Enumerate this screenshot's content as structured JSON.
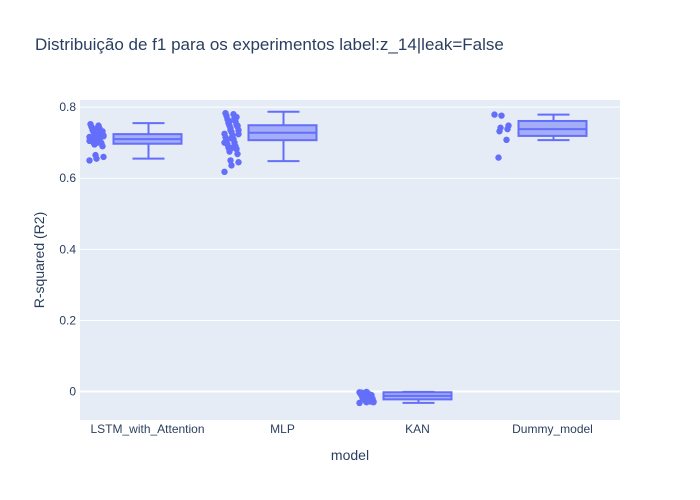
{
  "chart_data": {
    "type": "box",
    "title": "Distribuição de f1 para os experimentos   label:z_14|leak=False",
    "xlabel": "model",
    "ylabel": "R-squared (R2)",
    "categories": [
      "LSTM_with_Attention",
      "MLP",
      "KAN",
      "Dummy_model"
    ],
    "ylim": [
      -0.08,
      0.82
    ],
    "yticks": [
      0,
      0.2,
      0.4,
      0.6,
      0.8
    ],
    "ytick_labels": [
      "0",
      "0.2",
      "0.4",
      "0.6",
      "0.8"
    ],
    "grid": true,
    "colors": {
      "box": "#636efa",
      "plot_bg": "#e5ecf6",
      "text": "#2a3f5f"
    },
    "boxes": [
      {
        "category": "LSTM_with_Attention",
        "min": 0.655,
        "q1": 0.697,
        "median": 0.71,
        "q3": 0.724,
        "max": 0.755,
        "points": [
          0.65,
          0.655,
          0.66,
          0.665,
          0.69,
          0.695,
          0.698,
          0.7,
          0.702,
          0.704,
          0.706,
          0.708,
          0.71,
          0.712,
          0.714,
          0.716,
          0.718,
          0.72,
          0.722,
          0.724,
          0.726,
          0.728,
          0.73,
          0.733,
          0.736,
          0.74,
          0.744,
          0.748,
          0.752,
          0.7,
          0.705,
          0.712,
          0.718,
          0.725,
          0.732,
          0.738
        ]
      },
      {
        "category": "MLP",
        "min": 0.648,
        "q1": 0.707,
        "median": 0.728,
        "q3": 0.749,
        "max": 0.787,
        "points": [
          0.618,
          0.636,
          0.645,
          0.65,
          0.668,
          0.675,
          0.682,
          0.686,
          0.69,
          0.695,
          0.7,
          0.705,
          0.71,
          0.715,
          0.72,
          0.725,
          0.73,
          0.735,
          0.74,
          0.745,
          0.748,
          0.75,
          0.755,
          0.76,
          0.765,
          0.77,
          0.775,
          0.78,
          0.783,
          0.686,
          0.7,
          0.712,
          0.724,
          0.736,
          0.748,
          0.76,
          0.772
        ]
      },
      {
        "category": "KAN",
        "min": -0.032,
        "q1": -0.022,
        "median": -0.012,
        "q3": -0.002,
        "max": -0.001,
        "points": [
          -0.032,
          -0.03,
          -0.028,
          -0.026,
          -0.024,
          -0.022,
          -0.02,
          -0.018,
          -0.016,
          -0.014,
          -0.012,
          -0.01,
          -0.008,
          -0.006,
          -0.004,
          -0.002,
          -0.001,
          -0.03,
          -0.025,
          -0.02,
          -0.015,
          -0.01,
          -0.005,
          -0.028,
          -0.018,
          -0.008,
          -0.003
        ]
      },
      {
        "category": "Dummy_model",
        "min": 0.707,
        "q1": 0.719,
        "median": 0.738,
        "q3": 0.761,
        "max": 0.779,
        "points": [
          0.779,
          0.776,
          0.748,
          0.742,
          0.738,
          0.732,
          0.708,
          0.658
        ]
      }
    ]
  }
}
